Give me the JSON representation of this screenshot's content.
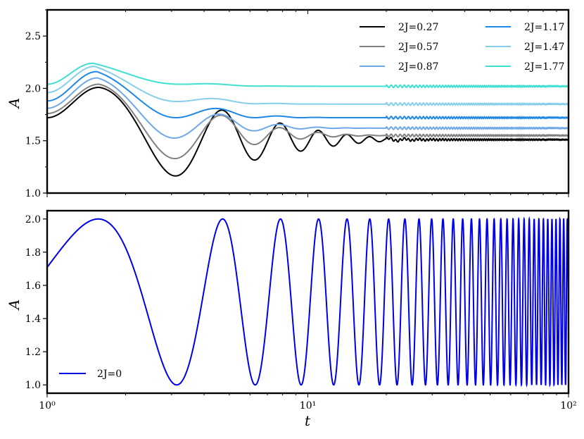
{
  "chart_data": [
    {
      "type": "line",
      "panel": "top",
      "xlabel": "",
      "ylabel": "A",
      "xscale": "log",
      "xlim": [
        1,
        100
      ],
      "ylim": [
        1.0,
        2.75
      ],
      "yticks": [
        1.0,
        1.5,
        2.0,
        2.5
      ],
      "ytick_labels": [
        "1.0",
        "1.5",
        "2.0",
        "2.5"
      ],
      "legend_position": "top-right",
      "legend_columns": 2,
      "series": [
        {
          "name": "2J=0.27",
          "color": "#000000",
          "start": 1.72,
          "peak": [
            1.58,
            2.01
          ],
          "trough": [
            3.15,
            1.05
          ],
          "final": 1.51
        },
        {
          "name": "2J=0.57",
          "color": "#808080",
          "start": 1.76,
          "peak": [
            1.58,
            2.04
          ],
          "trough": [
            3.15,
            1.2
          ],
          "final": 1.55
        },
        {
          "name": "2J=0.87",
          "color": "#6fa8e8",
          "start": 1.81,
          "peak": [
            1.56,
            2.1
          ],
          "trough": [
            3.1,
            1.44
          ],
          "final": 1.62
        },
        {
          "name": "2J=1.17",
          "color": "#1e88e5",
          "start": 1.88,
          "peak": [
            1.55,
            2.16
          ],
          "trough": [
            3.0,
            1.72
          ],
          "final": 1.72
        },
        {
          "name": "2J=1.47",
          "color": "#87ceeb",
          "start": 1.96,
          "peak": [
            1.52,
            2.21
          ],
          "trough": [
            2.9,
            1.92
          ],
          "final": 1.85
        },
        {
          "name": "2J=1.77",
          "color": "#40e0d0",
          "start": 2.04,
          "peak": [
            1.5,
            2.24
          ],
          "trough": [
            2.3,
            2.09
          ],
          "final": 2.02
        }
      ]
    },
    {
      "type": "line",
      "panel": "bottom",
      "xlabel": "t",
      "ylabel": "A",
      "xscale": "log",
      "xlim": [
        1,
        100
      ],
      "ylim": [
        0.95,
        2.05
      ],
      "yticks": [
        1.0,
        1.2,
        1.4,
        1.6,
        1.8,
        2.0
      ],
      "ytick_labels": [
        "1.0",
        "1.2",
        "1.4",
        "1.6",
        "1.8",
        "2.0"
      ],
      "xtick_labels": [
        "10⁰",
        "10¹",
        "10²"
      ],
      "legend_position": "bottom-left",
      "series": [
        {
          "name": "2J=0",
          "color": "#0000e6",
          "start": 1.71,
          "min": 1.0,
          "max": 2.0,
          "oscillation": "cos(2π·t/π) between 1.0 and 2.0"
        }
      ]
    }
  ]
}
